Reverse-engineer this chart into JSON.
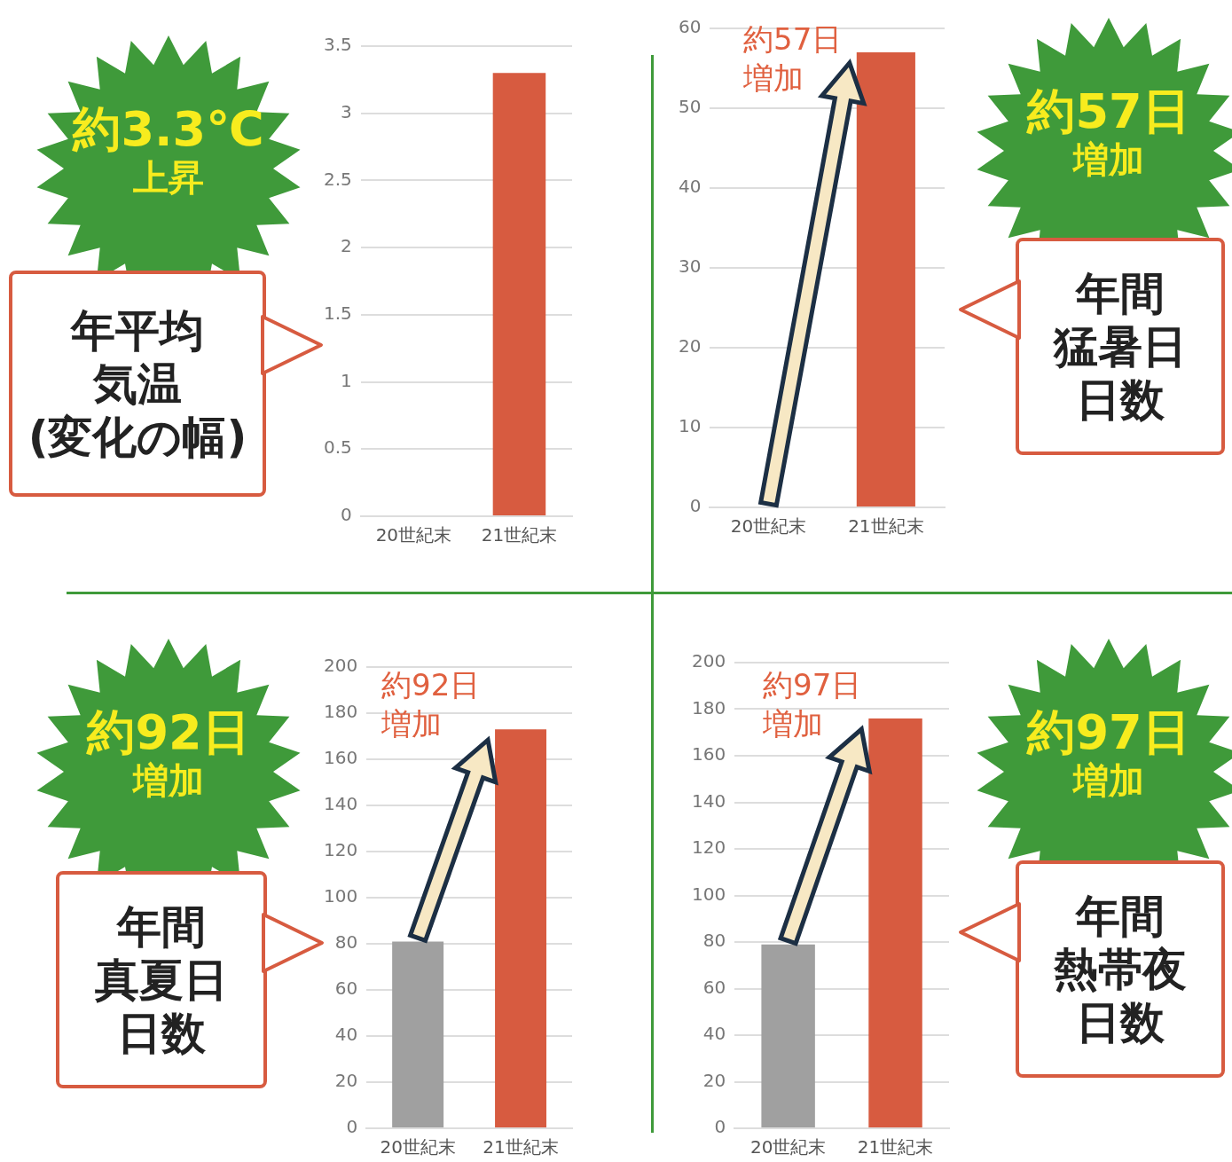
{
  "chart_data": [
    {
      "type": "bar",
      "categories": [
        "20世紀末",
        "21世紀末"
      ],
      "values": [
        0,
        3.3
      ],
      "colors": [
        "#a0a0a0",
        "#d75b40"
      ],
      "ylim": [
        0,
        3.5
      ],
      "yticks": [
        0,
        0.5,
        1,
        1.5,
        2,
        2.5,
        3,
        3.5
      ],
      "grid": "y",
      "annotations": [
        "約3.3℃上昇",
        "年平均気温(変化の幅)"
      ]
    },
    {
      "type": "bar",
      "categories": [
        "20世紀末",
        "21世紀末"
      ],
      "values": [
        0,
        57
      ],
      "colors": [
        "#a0a0a0",
        "#d75b40"
      ],
      "ylim": [
        0,
        60
      ],
      "yticks": [
        0,
        10,
        20,
        30,
        40,
        50,
        60
      ],
      "grid": "y",
      "annotations": [
        "約57日増加",
        "年間猛暑日日数",
        "約57日増加"
      ]
    },
    {
      "type": "bar",
      "categories": [
        "20世紀末",
        "21世紀末"
      ],
      "values": [
        81,
        173
      ],
      "colors": [
        "#a0a0a0",
        "#d75b40"
      ],
      "ylim": [
        0,
        200
      ],
      "yticks": [
        0,
        20,
        40,
        60,
        80,
        100,
        120,
        140,
        160,
        180,
        200
      ],
      "grid": "y",
      "annotations": [
        "約92日増加",
        "年間真夏日日数",
        "約92日増加"
      ]
    },
    {
      "type": "bar",
      "categories": [
        "20世紀末",
        "21世紀末"
      ],
      "values": [
        79,
        176
      ],
      "colors": [
        "#a0a0a0",
        "#d75b40"
      ],
      "ylim": [
        0,
        200
      ],
      "yticks": [
        0,
        20,
        40,
        60,
        80,
        100,
        120,
        140,
        160,
        180,
        200
      ],
      "grid": "y",
      "annotations": [
        "約97日増加",
        "年間熱帯夜日数",
        "約97日増加"
      ]
    }
  ]
}
